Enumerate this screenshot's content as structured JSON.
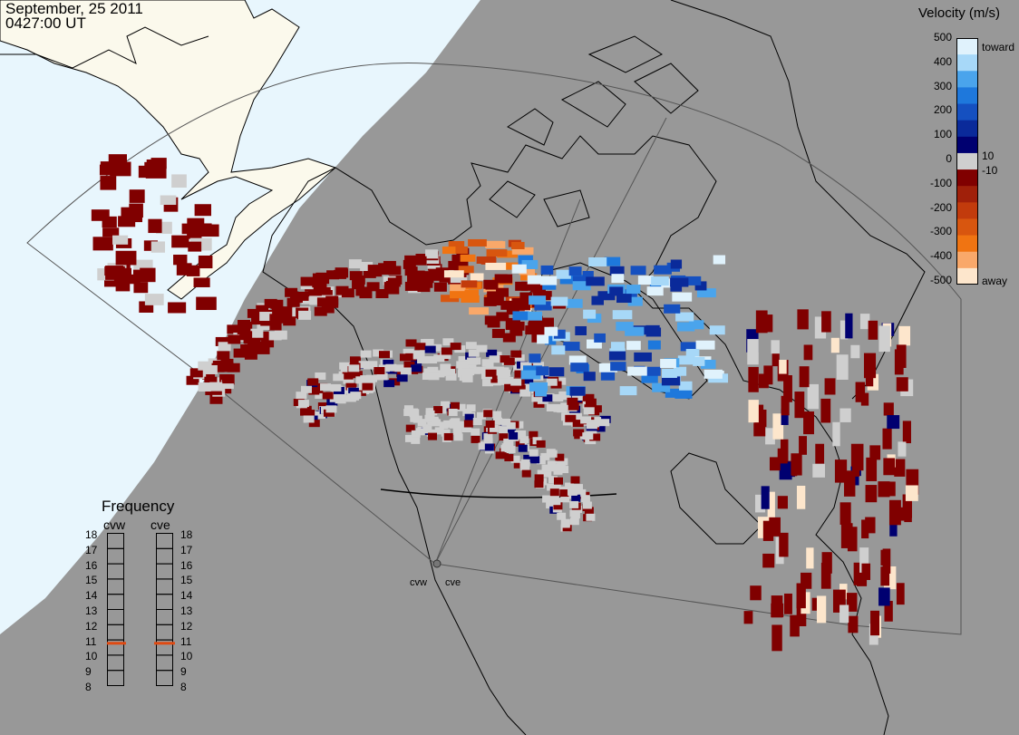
{
  "title": {
    "date": "September, 25 2011",
    "time": "0427:00 UT"
  },
  "velocity_legend": {
    "title": "Velocity (m/s)",
    "ticks": [
      "500",
      "400",
      "300",
      "200",
      "100",
      "0",
      "-100",
      "-200",
      "-300",
      "-400",
      "-500"
    ],
    "inner_labels": [
      "10",
      "-10"
    ],
    "toward_label": "toward",
    "away_label": "away",
    "colors": [
      "#fde6cc",
      "#f9a86a",
      "#f07412",
      "#d8560f",
      "#c23b0c",
      "#a0200a",
      "#800000",
      "#cfcfcf",
      "#000070",
      "#0a2a9a",
      "#1550c0",
      "#1e78dc",
      "#4aa4ec",
      "#a7d8f8",
      "#e0f2fc"
    ]
  },
  "frequency_legend": {
    "title": "Frequency",
    "radars": [
      "cvw",
      "cve"
    ],
    "scale": [
      "18",
      "17",
      "16",
      "15",
      "14",
      "13",
      "12",
      "11",
      "10",
      "9",
      "8"
    ],
    "selected_mhz": {
      "cvw": 10.75,
      "cve": 10.75
    }
  },
  "radar_sites": [
    "cvw",
    "cve"
  ],
  "colors": {
    "background": "#989898",
    "daylight": "#e8f6fd",
    "land_day": "#fbf9ec",
    "echo_ground": "#cfcfcf",
    "echo_low": "#800000",
    "indicator": "#e04a12"
  }
}
